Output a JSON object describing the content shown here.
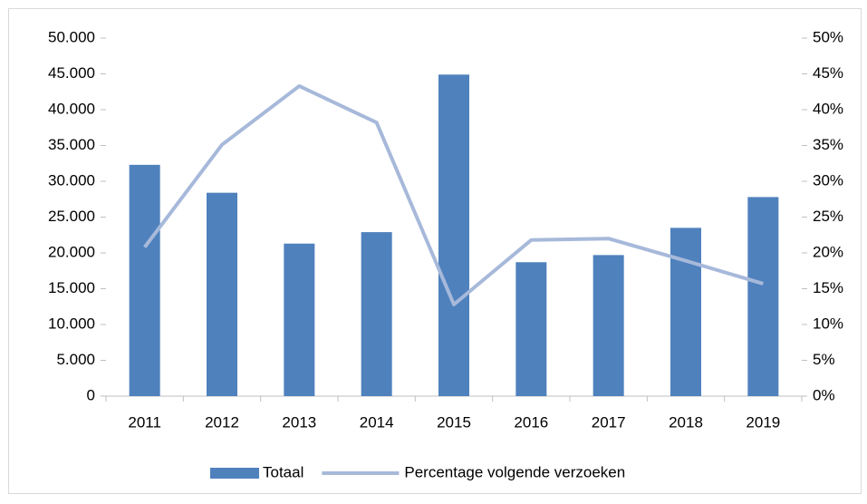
{
  "chart_data": {
    "type": "bar",
    "categories": [
      "2011",
      "2012",
      "2013",
      "2014",
      "2015",
      "2016",
      "2017",
      "2018",
      "2019"
    ],
    "series": [
      {
        "name": "Totaal",
        "type": "bar",
        "axis": "y",
        "color": "#4f81bd",
        "values": [
          32300,
          28400,
          21300,
          22900,
          44900,
          18700,
          19700,
          23500,
          27800
        ]
      },
      {
        "name": "Percentage volgende verzoeken",
        "type": "line",
        "axis": "y2",
        "color": "#a7b9da",
        "values": [
          20.8,
          35.1,
          43.3,
          38.2,
          12.8,
          21.8,
          22.0,
          18.9,
          15.7
        ]
      }
    ],
    "ylim": [
      0,
      50000
    ],
    "yticks": [
      0,
      {
        "value": 5000,
        "label": "5.000"
      },
      {
        "value": 10000,
        "label": "10.000"
      },
      {
        "value": 15000,
        "label": "15.000"
      },
      {
        "value": 20000,
        "label": "20.000"
      },
      {
        "value": 25000,
        "label": "25.000"
      },
      {
        "value": 30000,
        "label": "30.000"
      },
      {
        "value": 35000,
        "label": "35.000"
      },
      {
        "value": 40000,
        "label": "40.000"
      },
      {
        "value": 45000,
        "label": "45.000"
      },
      {
        "value": 50000,
        "label": "50.000"
      }
    ],
    "y2lim": [
      0,
      50
    ],
    "y2ticks": [
      {
        "value": 0,
        "label": "0%"
      },
      {
        "value": 5,
        "label": "5%"
      },
      {
        "value": 10,
        "label": "10%"
      },
      {
        "value": 15,
        "label": "15%"
      },
      {
        "value": 20,
        "label": "20%"
      },
      {
        "value": 25,
        "label": "25%"
      },
      {
        "value": 30,
        "label": "30%"
      },
      {
        "value": 35,
        "label": "35%"
      },
      {
        "value": 40,
        "label": "40%"
      },
      {
        "value": 45,
        "label": "45%"
      },
      {
        "value": 50,
        "label": "50%"
      }
    ],
    "legend": "bottom",
    "grid": false
  }
}
